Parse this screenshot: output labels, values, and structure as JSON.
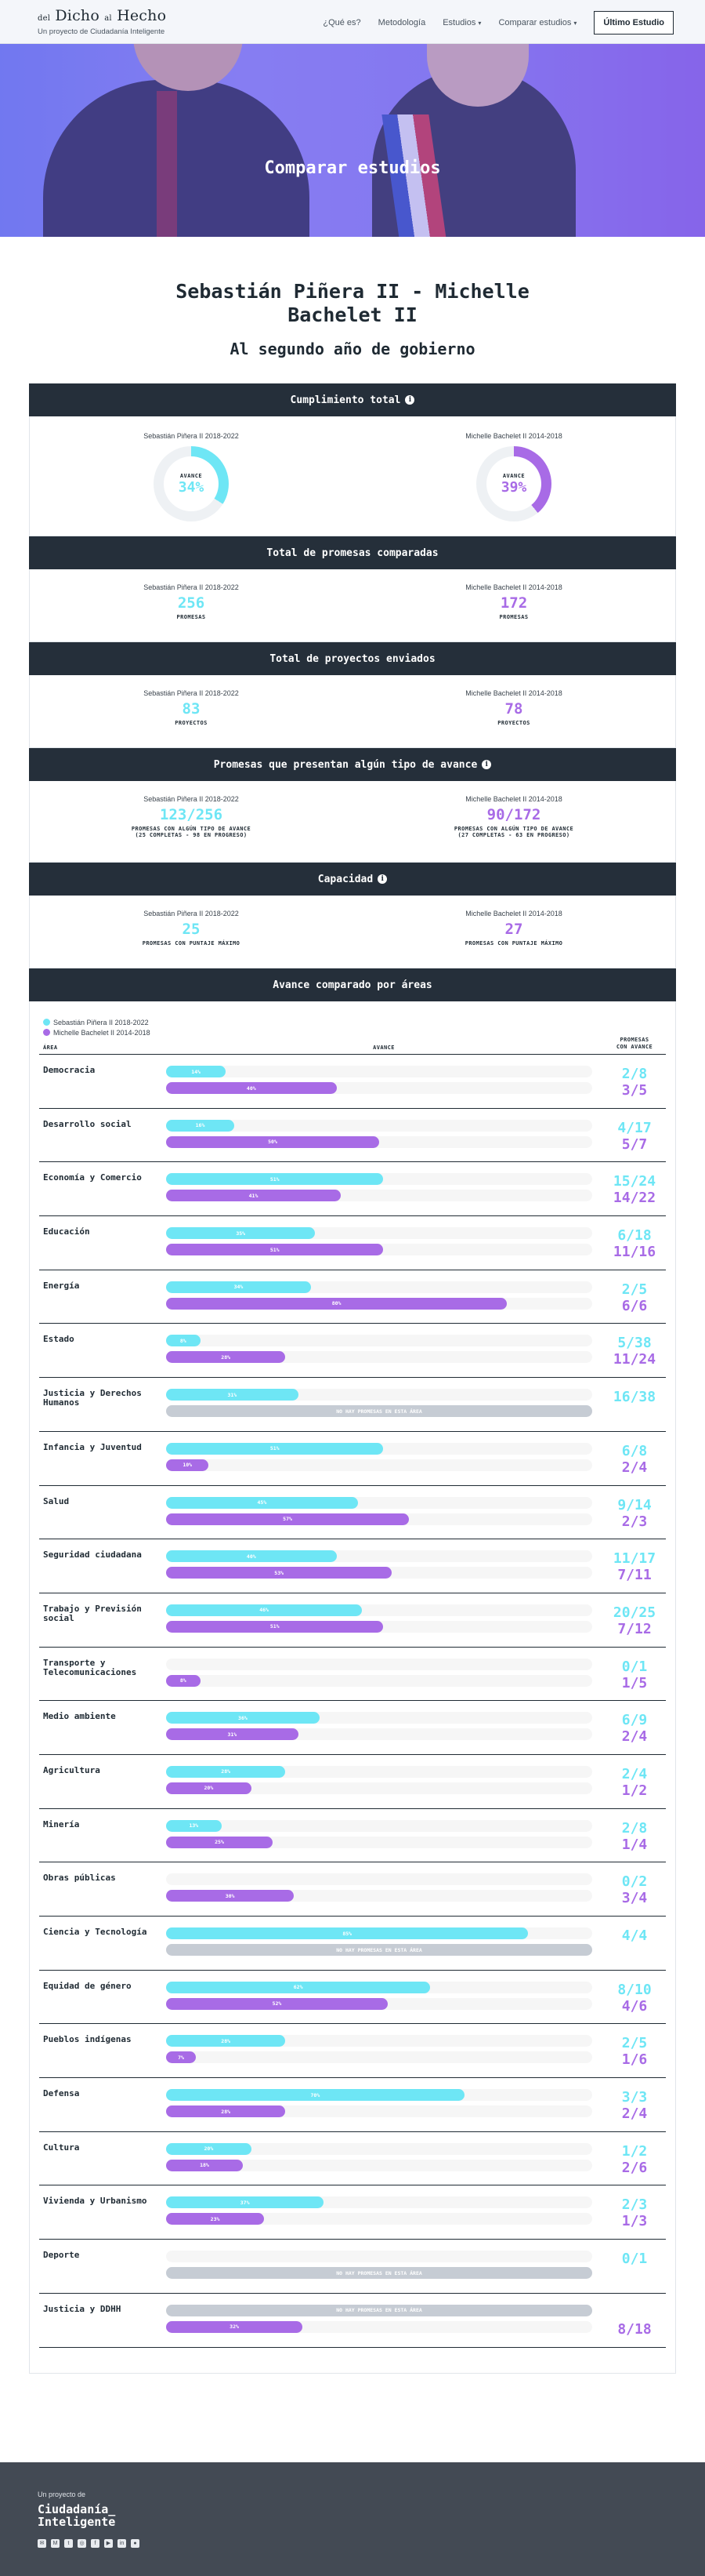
{
  "header": {
    "logo_line1_a": "del",
    "logo_line1_b": "Dicho",
    "logo_line1_c": "al",
    "logo_line1_d": "Hecho",
    "logo_line2": "Un proyecto de Ciudadanía Inteligente",
    "nav": [
      {
        "label": "¿Qué es?",
        "caret": false
      },
      {
        "label": "Metodología",
        "caret": false
      },
      {
        "label": "Estudios",
        "caret": true
      },
      {
        "label": "Comparar estudios",
        "caret": true
      }
    ],
    "cta": "Último Estudio"
  },
  "hero": {
    "title": "Comparar estudios"
  },
  "comparison": {
    "title": "Sebastián Piñera II - Michelle Bachelet II",
    "subtitle": "Al segundo año de gobierno"
  },
  "colors": {
    "pinera": "#6ee6f5",
    "bachelet": "#a86be6",
    "dark": "#252f3a"
  },
  "gov_a": "Sebastián Piñera II 2018-2022",
  "gov_b": "Michelle Bachelet II 2014-2018",
  "sections": {
    "cumplimiento": {
      "title": "Cumplimiento total",
      "label": "AVANCE",
      "a_value": "34%",
      "a_fraction": 0.34,
      "b_value": "39%",
      "b_fraction": 0.39
    },
    "promesas": {
      "title": "Total de promesas comparadas",
      "a_value": "256",
      "b_value": "172",
      "caption": "PROMESAS"
    },
    "proyectos": {
      "title": "Total de proyectos enviados",
      "a_value": "83",
      "b_value": "78",
      "caption": "PROYECTOS"
    },
    "avance": {
      "title": "Promesas que presentan algún tipo de avance",
      "a_value": "123/256",
      "b_value": "90/172",
      "caption": "PROMESAS CON ALGÚN TIPO DE AVANCE",
      "a_detail": "(25 COMPLETAS - 98 EN PROGRESO)",
      "b_detail": "(27 COMPLETAS - 63 EN PROGRESO)"
    },
    "capacidad": {
      "title": "Capacidad",
      "a_value": "25",
      "b_value": "27",
      "caption": "PROMESAS CON PUNTAJE MÁXIMO"
    }
  },
  "areas": {
    "title": "Avance comparado por áreas",
    "legend_a": "Sebastián Piñera II 2018-2022",
    "legend_b": "Michelle Bachelet II 2014-2018",
    "col_area": "ÁREA",
    "col_avance": "AVANCE",
    "col_promesas_1": "PROMESAS",
    "col_promesas_2": "CON AVANCE",
    "no_data": "NO HAY PROMESAS EN ESTA ÁREA",
    "rows": [
      {
        "name": "Democracia",
        "a_pct": 14,
        "a_label": "14%",
        "b_pct": 40,
        "b_label": "40%",
        "a_count": "2/8",
        "b_count": "3/5"
      },
      {
        "name": "Desarrollo social",
        "a_pct": 16,
        "a_label": "16%",
        "b_pct": 50,
        "b_label": "50%",
        "a_count": "4/17",
        "b_count": "5/7"
      },
      {
        "name": "Economía y Comercio",
        "a_pct": 51,
        "a_label": "51%",
        "b_pct": 41,
        "b_label": "41%",
        "a_count": "15/24",
        "b_count": "14/22"
      },
      {
        "name": "Educación",
        "a_pct": 35,
        "a_label": "35%",
        "b_pct": 51,
        "b_label": "51%",
        "a_count": "6/18",
        "b_count": "11/16"
      },
      {
        "name": "Energía",
        "a_pct": 34,
        "a_label": "34%",
        "b_pct": 80,
        "b_label": "80%",
        "a_count": "2/5",
        "b_count": "6/6"
      },
      {
        "name": "Estado",
        "a_pct": 8,
        "a_label": "8%",
        "b_pct": 28,
        "b_label": "28%",
        "a_count": "5/38",
        "b_count": "11/24"
      },
      {
        "name": "Justicia y Derechos Humanos",
        "a_pct": 31,
        "a_label": "31%",
        "b_pct": null,
        "b_label": "",
        "a_count": "16/38",
        "b_count": ""
      },
      {
        "name": "Infancia y Juventud",
        "a_pct": 51,
        "a_label": "51%",
        "b_pct": 10,
        "b_label": "10%",
        "a_count": "6/8",
        "b_count": "2/4"
      },
      {
        "name": "Salud",
        "a_pct": 45,
        "a_label": "45%",
        "b_pct": 57,
        "b_label": "57%",
        "a_count": "9/14",
        "b_count": "2/3"
      },
      {
        "name": "Seguridad ciudadana",
        "a_pct": 40,
        "a_label": "40%",
        "b_pct": 53,
        "b_label": "53%",
        "a_count": "11/17",
        "b_count": "7/11"
      },
      {
        "name": "Trabajo y Previsión social",
        "a_pct": 46,
        "a_label": "46%",
        "b_pct": 51,
        "b_label": "51%",
        "a_count": "20/25",
        "b_count": "7/12"
      },
      {
        "name": "Transporte y Telecomunicaciones",
        "a_pct": null,
        "a_label": "",
        "b_pct": 8,
        "b_label": "8%",
        "a_count": "0/1",
        "b_count": "1/5"
      },
      {
        "name": "Medio ambiente",
        "a_pct": 36,
        "a_label": "36%",
        "b_pct": 31,
        "b_label": "31%",
        "a_count": "6/9",
        "b_count": "2/4"
      },
      {
        "name": "Agricultura",
        "a_pct": 28,
        "a_label": "28%",
        "b_pct": 20,
        "b_label": "20%",
        "a_count": "2/4",
        "b_count": "1/2"
      },
      {
        "name": "Minería",
        "a_pct": 13,
        "a_label": "13%",
        "b_pct": 25,
        "b_label": "25%",
        "a_count": "2/8",
        "b_count": "1/4"
      },
      {
        "name": "Obras públicas",
        "a_pct": null,
        "a_label": "",
        "b_pct": 30,
        "b_label": "30%",
        "a_count": "0/2",
        "b_count": "3/4"
      },
      {
        "name": "Ciencia y Tecnología",
        "a_pct": 85,
        "a_label": "85%",
        "b_pct": null,
        "b_label": "",
        "a_count": "4/4",
        "b_count": ""
      },
      {
        "name": "Equidad de género",
        "a_pct": 62,
        "a_label": "62%",
        "b_pct": 52,
        "b_label": "52%",
        "a_count": "8/10",
        "b_count": "4/6"
      },
      {
        "name": "Pueblos indígenas",
        "a_pct": 28,
        "a_label": "28%",
        "b_pct": 7,
        "b_label": "7%",
        "a_count": "2/5",
        "b_count": "1/6"
      },
      {
        "name": "Defensa",
        "a_pct": 70,
        "a_label": "70%",
        "b_pct": 28,
        "b_label": "28%",
        "a_count": "3/3",
        "b_count": "2/4"
      },
      {
        "name": "Cultura",
        "a_pct": 20,
        "a_label": "20%",
        "b_pct": 18,
        "b_label": "18%",
        "a_count": "1/2",
        "b_count": "2/6"
      },
      {
        "name": "Vivienda y Urbanismo",
        "a_pct": 37,
        "a_label": "37%",
        "b_pct": 23,
        "b_label": "23%",
        "a_count": "2/3",
        "b_count": "1/3"
      },
      {
        "name": "Deporte",
        "a_pct": null,
        "a_label": "",
        "b_pct": null,
        "b_label": "",
        "a_count": "0/1",
        "b_count": "",
        "b_nodata": true
      },
      {
        "name": "Justicia y DDHH",
        "a_pct": null,
        "a_label": "",
        "b_pct": 32,
        "b_label": "32%",
        "a_count": "",
        "b_count": "8/18",
        "a_nodata": true
      }
    ]
  },
  "footer": {
    "line1": "Un proyecto de",
    "brand_1": "Ciudadanía_",
    "brand_2": "Inteligente"
  }
}
